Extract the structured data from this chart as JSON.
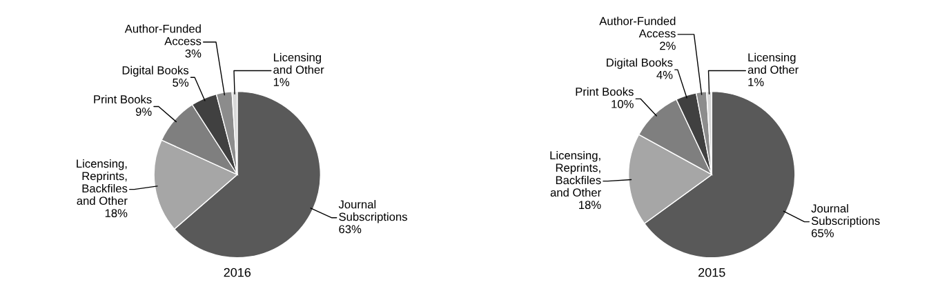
{
  "chart_data": [
    {
      "type": "pie",
      "title": "2016",
      "categories": [
        "Journal\nSubscriptions",
        "Licensing,\nReprints,\nBackfiles\nand Other",
        "Print Books",
        "Digital Books",
        "Author-Funded\nAccess",
        "Licensing\nand Other"
      ],
      "values": [
        63,
        18,
        9,
        5,
        3,
        1
      ],
      "value_labels": [
        "63%",
        "18%",
        "9%",
        "5%",
        "3%",
        "1%"
      ],
      "colors": [
        "#595959",
        "#a6a6a6",
        "#7f7f7f",
        "#404040",
        "#8c8c8c",
        "#d9d9d9"
      ]
    },
    {
      "type": "pie",
      "title": "2015",
      "categories": [
        "Journal\nSubscriptions",
        "Licensing,\nReprints,\nBackfiles\nand Other",
        "Print Books",
        "Digital Books",
        "Author-Funded\nAccess",
        "Licensing\nand Other"
      ],
      "values": [
        65,
        18,
        10,
        4,
        2,
        1
      ],
      "value_labels": [
        "65%",
        "18%",
        "10%",
        "4%",
        "2%",
        "1%"
      ],
      "colors": [
        "#595959",
        "#a6a6a6",
        "#7f7f7f",
        "#404040",
        "#8c8c8c",
        "#d9d9d9"
      ]
    }
  ]
}
